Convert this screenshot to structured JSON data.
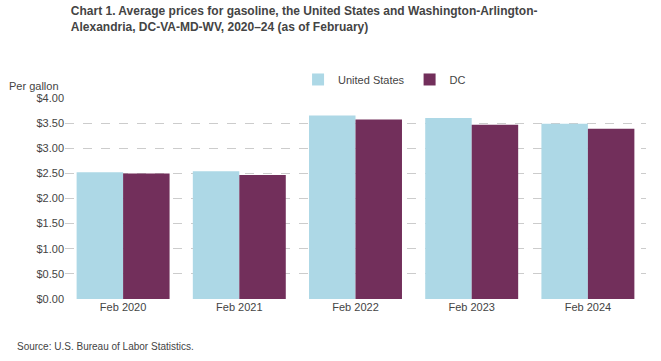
{
  "chart_data": {
    "type": "bar",
    "title": "Chart 1. Average prices for gasoline, the United States and Washington-Arlington-\nAlexandria, DC-VA-MD-WV, 2020–24 (as of February)",
    "ylabel": "Per gallon",
    "annotations": [
      "Source: U.S. Bureau of Labor Statistics."
    ],
    "categories": [
      "Feb 2020",
      "Feb 2021",
      "Feb 2022",
      "Feb 2023",
      "Feb 2024"
    ],
    "series": [
      {
        "name": "United States",
        "color": "#ADD8E6",
        "values": [
          2.52,
          2.54,
          3.65,
          3.6,
          3.49
        ]
      },
      {
        "name": "DC",
        "color": "#722F5B",
        "values": [
          2.5,
          2.47,
          3.57,
          3.47,
          3.39
        ]
      }
    ],
    "ylim": [
      0,
      4.0
    ],
    "yticks": [
      {
        "value": 0.0,
        "label": "$0.00"
      },
      {
        "value": 0.5,
        "label": "$0.50"
      },
      {
        "value": 1.0,
        "label": "$1.00"
      },
      {
        "value": 1.5,
        "label": "$1.50"
      },
      {
        "value": 2.0,
        "label": "$2.00"
      },
      {
        "value": 2.5,
        "label": "$2.50"
      },
      {
        "value": 3.0,
        "label": "$3.00"
      },
      {
        "value": 3.5,
        "label": "$3.50"
      },
      {
        "value": 4.0,
        "label": "$4.00"
      }
    ],
    "grid": true,
    "legend": "upper center"
  }
}
